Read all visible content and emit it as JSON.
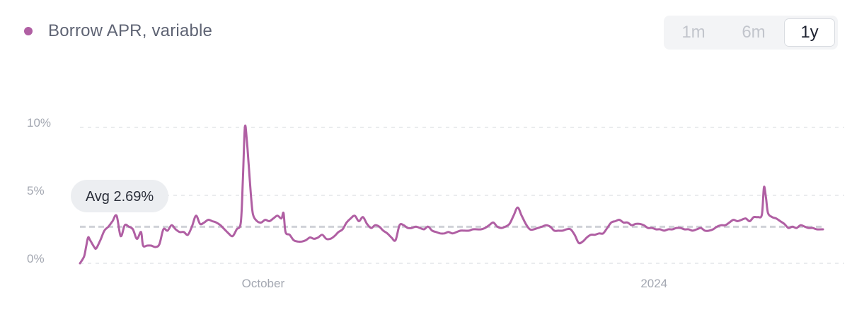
{
  "legend": {
    "label": "Borrow APR, variable",
    "color": "#b05fa3"
  },
  "range_toggle": {
    "options": [
      "1m",
      "6m",
      "1y"
    ],
    "selected": "1y"
  },
  "average": {
    "label": "Avg 2.69%",
    "value": 2.69
  },
  "colors": {
    "line": "#b05fa3",
    "grid": "#e3e5e8",
    "avg_line": "#d0d2d7",
    "pill_bg": "#eceef1"
  },
  "chart_data": {
    "type": "line",
    "title": "",
    "xlabel": "",
    "ylabel": "",
    "ylim": [
      0,
      10
    ],
    "xlim": [
      0,
      365
    ],
    "y_ticks": [
      {
        "value": 0,
        "label": "0%"
      },
      {
        "value": 5,
        "label": "5%"
      },
      {
        "value": 10,
        "label": "10%"
      }
    ],
    "x_ticks": [
      {
        "value": 90,
        "label": "October"
      },
      {
        "value": 282,
        "label": "2024"
      }
    ],
    "grid": true,
    "average_line": 2.69,
    "series": [
      {
        "name": "Borrow APR, variable",
        "points": [
          [
            0,
            0.0
          ],
          [
            2,
            0.5
          ],
          [
            3,
            1.2
          ],
          [
            4,
            1.9
          ],
          [
            5,
            1.7
          ],
          [
            7,
            1.2
          ],
          [
            8,
            1.1
          ],
          [
            10,
            1.7
          ],
          [
            12,
            2.4
          ],
          [
            14,
            2.7
          ],
          [
            16,
            3.1
          ],
          [
            18,
            3.5
          ],
          [
            20,
            2.0
          ],
          [
            22,
            2.8
          ],
          [
            24,
            2.7
          ],
          [
            26,
            2.5
          ],
          [
            28,
            1.8
          ],
          [
            30,
            2.3
          ],
          [
            31,
            1.3
          ],
          [
            33,
            1.3
          ],
          [
            35,
            1.3
          ],
          [
            37,
            1.2
          ],
          [
            39,
            1.4
          ],
          [
            41,
            2.5
          ],
          [
            43,
            2.4
          ],
          [
            45,
            2.8
          ],
          [
            47,
            2.5
          ],
          [
            49,
            2.3
          ],
          [
            51,
            2.3
          ],
          [
            53,
            2.1
          ],
          [
            55,
            2.7
          ],
          [
            57,
            3.5
          ],
          [
            59,
            2.9
          ],
          [
            61,
            3.0
          ],
          [
            63,
            3.2
          ],
          [
            65,
            3.1
          ],
          [
            67,
            3.0
          ],
          [
            69,
            2.8
          ],
          [
            71,
            2.5
          ],
          [
            73,
            2.2
          ],
          [
            75,
            2.0
          ],
          [
            77,
            2.5
          ],
          [
            79,
            3.0
          ],
          [
            80,
            6.0
          ],
          [
            81,
            10.0
          ],
          [
            82,
            9.0
          ],
          [
            83,
            7.0
          ],
          [
            84,
            5.0
          ],
          [
            85,
            3.6
          ],
          [
            87,
            3.1
          ],
          [
            89,
            3.0
          ],
          [
            91,
            3.2
          ],
          [
            93,
            3.1
          ],
          [
            95,
            3.3
          ],
          [
            97,
            3.5
          ],
          [
            99,
            3.3
          ],
          [
            100,
            3.7
          ],
          [
            101,
            2.3
          ],
          [
            103,
            2.1
          ],
          [
            105,
            1.7
          ],
          [
            107,
            1.6
          ],
          [
            109,
            1.6
          ],
          [
            111,
            1.7
          ],
          [
            113,
            1.9
          ],
          [
            115,
            1.8
          ],
          [
            117,
            1.9
          ],
          [
            119,
            2.1
          ],
          [
            121,
            1.8
          ],
          [
            123,
            1.8
          ],
          [
            125,
            2.0
          ],
          [
            127,
            2.3
          ],
          [
            129,
            2.5
          ],
          [
            131,
            3.0
          ],
          [
            133,
            3.3
          ],
          [
            135,
            3.5
          ],
          [
            137,
            3.1
          ],
          [
            139,
            3.4
          ],
          [
            141,
            2.9
          ],
          [
            143,
            2.6
          ],
          [
            145,
            2.8
          ],
          [
            147,
            2.7
          ],
          [
            149,
            2.4
          ],
          [
            151,
            2.2
          ],
          [
            153,
            1.9
          ],
          [
            155,
            1.7
          ],
          [
            157,
            2.8
          ],
          [
            159,
            2.8
          ],
          [
            161,
            2.6
          ],
          [
            163,
            2.6
          ],
          [
            165,
            2.7
          ],
          [
            167,
            2.6
          ],
          [
            169,
            2.5
          ],
          [
            171,
            2.7
          ],
          [
            173,
            2.4
          ],
          [
            175,
            2.3
          ],
          [
            177,
            2.2
          ],
          [
            179,
            2.2
          ],
          [
            181,
            2.3
          ],
          [
            183,
            2.2
          ],
          [
            185,
            2.3
          ],
          [
            187,
            2.4
          ],
          [
            189,
            2.4
          ],
          [
            191,
            2.4
          ],
          [
            193,
            2.5
          ],
          [
            195,
            2.5
          ],
          [
            197,
            2.5
          ],
          [
            199,
            2.6
          ],
          [
            201,
            2.8
          ],
          [
            203,
            3.0
          ],
          [
            205,
            2.7
          ],
          [
            207,
            2.6
          ],
          [
            209,
            2.7
          ],
          [
            211,
            2.9
          ],
          [
            213,
            3.5
          ],
          [
            215,
            4.1
          ],
          [
            217,
            3.5
          ],
          [
            219,
            2.9
          ],
          [
            221,
            2.5
          ],
          [
            223,
            2.5
          ],
          [
            225,
            2.6
          ],
          [
            227,
            2.7
          ],
          [
            229,
            2.8
          ],
          [
            231,
            2.7
          ],
          [
            233,
            2.4
          ],
          [
            235,
            2.4
          ],
          [
            237,
            2.4
          ],
          [
            239,
            2.5
          ],
          [
            241,
            2.5
          ],
          [
            243,
            2.1
          ],
          [
            245,
            1.5
          ],
          [
            247,
            1.6
          ],
          [
            249,
            1.9
          ],
          [
            251,
            2.1
          ],
          [
            253,
            2.1
          ],
          [
            255,
            2.2
          ],
          [
            257,
            2.2
          ],
          [
            259,
            2.6
          ],
          [
            261,
            3.0
          ],
          [
            263,
            3.1
          ],
          [
            265,
            3.2
          ],
          [
            267,
            3.0
          ],
          [
            269,
            3.0
          ],
          [
            271,
            2.8
          ],
          [
            273,
            2.9
          ],
          [
            275,
            2.9
          ],
          [
            277,
            2.8
          ],
          [
            279,
            2.6
          ],
          [
            281,
            2.6
          ],
          [
            283,
            2.5
          ],
          [
            285,
            2.5
          ],
          [
            287,
            2.4
          ],
          [
            289,
            2.5
          ],
          [
            291,
            2.5
          ],
          [
            293,
            2.6
          ],
          [
            295,
            2.6
          ],
          [
            297,
            2.5
          ],
          [
            299,
            2.5
          ],
          [
            301,
            2.4
          ],
          [
            303,
            2.5
          ],
          [
            305,
            2.6
          ],
          [
            307,
            2.4
          ],
          [
            309,
            2.4
          ],
          [
            311,
            2.5
          ],
          [
            313,
            2.7
          ],
          [
            315,
            2.8
          ],
          [
            317,
            2.8
          ],
          [
            319,
            3.0
          ],
          [
            321,
            3.2
          ],
          [
            323,
            3.1
          ],
          [
            325,
            3.2
          ],
          [
            327,
            3.3
          ],
          [
            329,
            3.1
          ],
          [
            331,
            3.4
          ],
          [
            333,
            3.4
          ],
          [
            335,
            3.6
          ],
          [
            336,
            5.6
          ],
          [
            337,
            4.8
          ],
          [
            338,
            3.7
          ],
          [
            340,
            3.4
          ],
          [
            342,
            3.3
          ],
          [
            344,
            3.1
          ],
          [
            346,
            2.9
          ],
          [
            348,
            2.6
          ],
          [
            350,
            2.7
          ],
          [
            352,
            2.6
          ],
          [
            354,
            2.8
          ],
          [
            356,
            2.7
          ],
          [
            358,
            2.6
          ],
          [
            360,
            2.6
          ],
          [
            362,
            2.5
          ],
          [
            365,
            2.5
          ]
        ]
      }
    ]
  }
}
